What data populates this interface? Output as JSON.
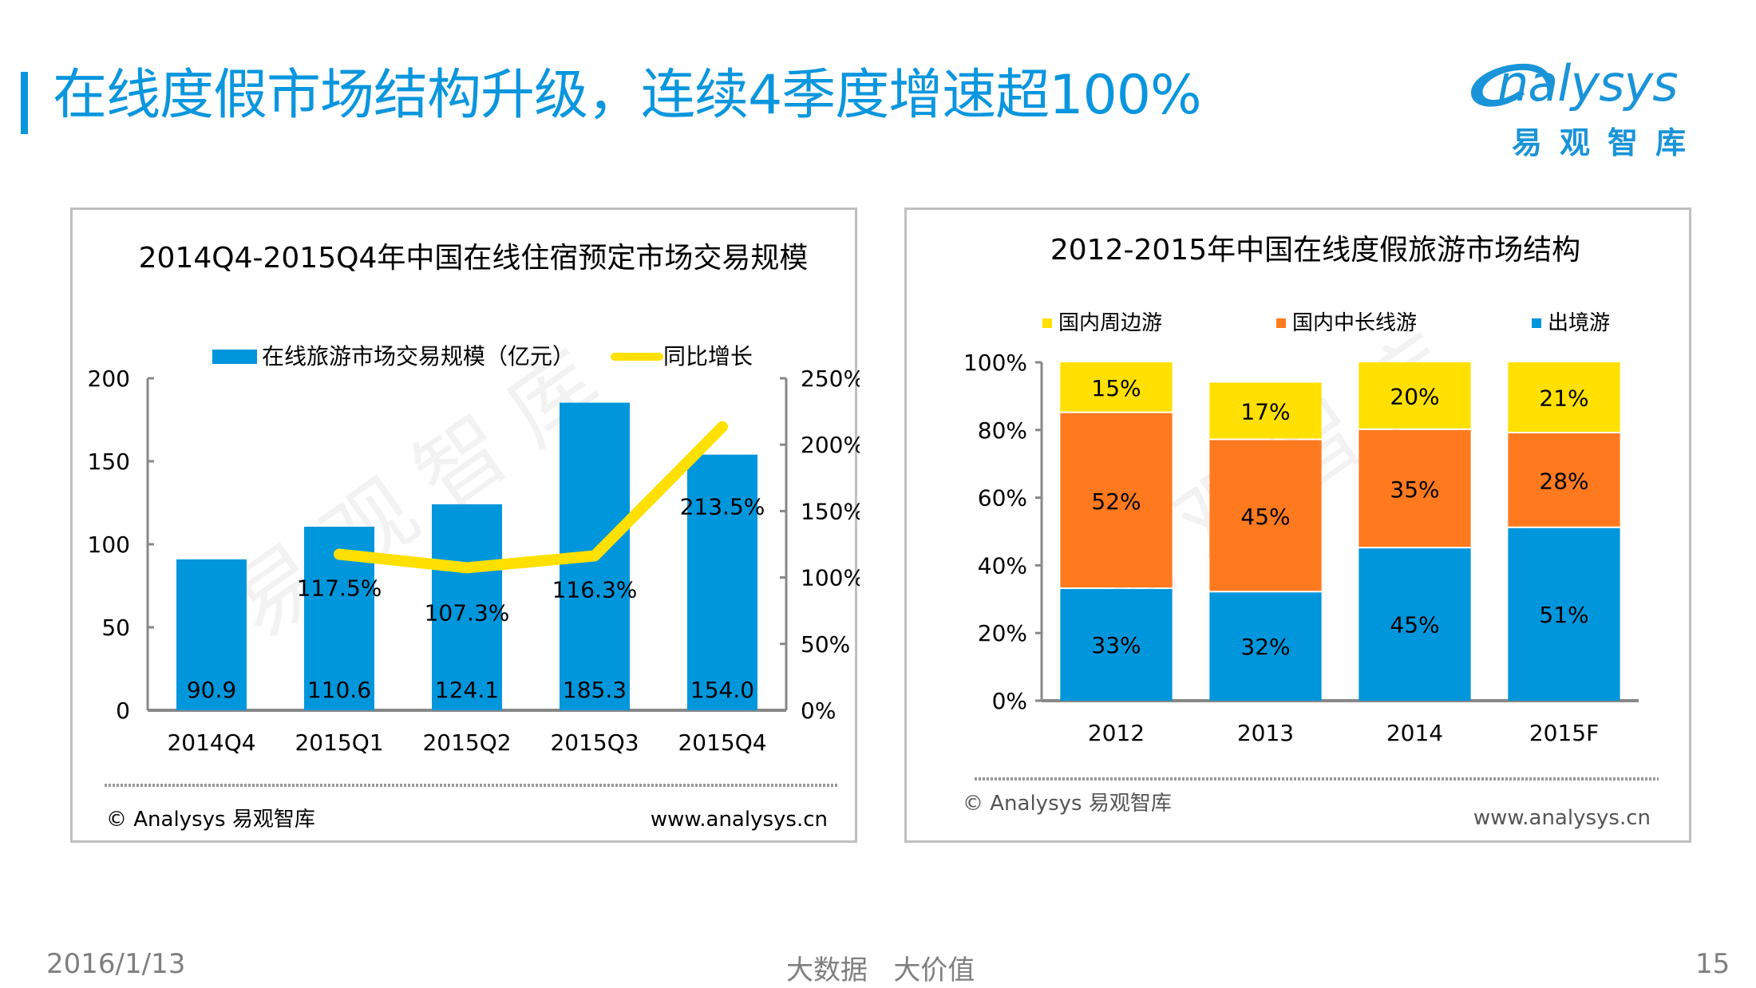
{
  "slide": {
    "title": "在线度假市场结构升级，连续4季度增速超100%",
    "logo": {
      "name_en": "nalysys",
      "name_cn": "易观智库"
    },
    "footer": {
      "date": "2016/1/13",
      "slogan": "大数据   大价值",
      "page_number": "15"
    },
    "accent_color": "#0a96de"
  },
  "credits": {
    "copyright": "© Analysys 易观智库",
    "website": "www.analysys.cn"
  },
  "watermark": "易观智库",
  "chart_data": [
    {
      "type": "bar",
      "title": "2014Q4-2015Q4年中国在线住宿预定市场交易规模",
      "categories": [
        "2014Q4",
        "2015Q1",
        "2015Q2",
        "2015Q3",
        "2015Q4"
      ],
      "series": [
        {
          "name": "在线旅游市场交易规模（亿元）",
          "kind": "bar",
          "axis": "left",
          "color": "#0096dc",
          "values": [
            90.9,
            110.6,
            124.1,
            185.3,
            154.0
          ],
          "labels": [
            "90.9",
            "110.6",
            "124.1",
            "185.3",
            "154.0"
          ]
        },
        {
          "name": "同比增长",
          "kind": "line",
          "axis": "right",
          "color": "#ffe000",
          "values": [
            null,
            117.5,
            107.3,
            116.3,
            213.5
          ],
          "labels": [
            "",
            "117.5%",
            "107.3%",
            "116.3%",
            "213.5%"
          ]
        }
      ],
      "y_left": {
        "ylim": [
          0,
          200
        ],
        "ticks": [
          0,
          50,
          100,
          150,
          200
        ],
        "tick_labels": [
          "0",
          "50",
          "100",
          "150",
          "200"
        ]
      },
      "y_right": {
        "ylim": [
          0,
          250
        ],
        "ticks": [
          0,
          50,
          100,
          150,
          200,
          250
        ],
        "tick_labels": [
          "0%",
          "50%",
          "100%",
          "150%",
          "200%",
          "250%"
        ]
      },
      "xlabel": "",
      "ylabel": "",
      "legend": "top",
      "grid": false
    },
    {
      "type": "bar",
      "stacked": true,
      "percent": true,
      "title": "2012-2015年中国在线度假旅游市场结构",
      "categories": [
        "2012",
        "2013",
        "2014",
        "2015F"
      ],
      "series": [
        {
          "name": "出境游",
          "color": "#0096dc",
          "values": [
            33,
            32,
            45,
            51
          ]
        },
        {
          "name": "国内中长线游",
          "color": "#ff7a1f",
          "values": [
            52,
            45,
            35,
            28
          ]
        },
        {
          "name": "国内周边游",
          "color": "#ffe000",
          "values": [
            15,
            17,
            20,
            21
          ]
        }
      ],
      "legend_order": [
        "国内周边游",
        "国内中长线游",
        "出境游"
      ],
      "y": {
        "ylim": [
          0,
          100
        ],
        "ticks": [
          0,
          20,
          40,
          60,
          80,
          100
        ],
        "tick_labels": [
          "0%",
          "20%",
          "40%",
          "60%",
          "80%",
          "100%"
        ]
      },
      "xlabel": "",
      "ylabel": "",
      "legend": "top",
      "grid": false
    }
  ]
}
